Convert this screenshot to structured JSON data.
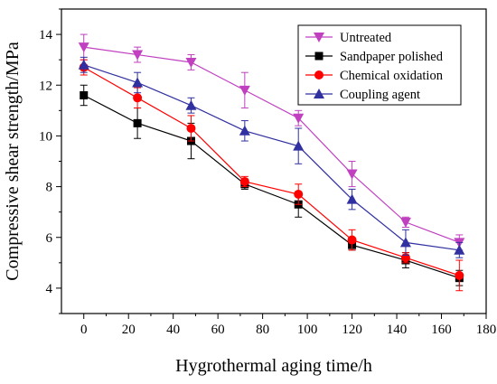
{
  "chart_data": {
    "type": "line",
    "xlabel": "Hygrothermal aging time/h",
    "ylabel": "Compressive shear strength/MPa",
    "xlim": [
      -10,
      180
    ],
    "ylim": [
      3.0,
      15.0
    ],
    "xticks": [
      0,
      20,
      40,
      60,
      80,
      100,
      120,
      140,
      160,
      180
    ],
    "yticks": [
      4,
      6,
      8,
      10,
      12,
      14
    ],
    "grid": false,
    "legend_position": "top-right",
    "x": [
      0,
      24,
      48,
      72,
      96,
      120,
      144,
      168
    ],
    "series": [
      {
        "name": "Untreated",
        "color": "#c040c0",
        "marker": "triangle-down",
        "values": [
          13.5,
          13.2,
          12.9,
          11.8,
          10.7,
          8.5,
          6.6,
          5.8
        ],
        "errors": [
          0.5,
          0.3,
          0.3,
          0.7,
          0.3,
          0.5,
          0.2,
          0.3
        ]
      },
      {
        "name": "Sandpaper polished",
        "color": "#000000",
        "marker": "square",
        "values": [
          11.6,
          10.5,
          9.8,
          8.1,
          7.3,
          5.7,
          5.1,
          4.4
        ],
        "errors": [
          0.4,
          0.6,
          0.7,
          0.2,
          0.5,
          0.2,
          0.3,
          0.3
        ]
      },
      {
        "name": "Chemical oxidation",
        "color": "#ff0000",
        "marker": "circle",
        "values": [
          12.7,
          11.5,
          10.3,
          8.2,
          7.7,
          5.9,
          5.2,
          4.5
        ],
        "errors": [
          0.3,
          0.4,
          0.5,
          0.2,
          0.4,
          0.4,
          0.2,
          0.6
        ]
      },
      {
        "name": "Coupling agent",
        "color": "#3030a0",
        "marker": "triangle-up",
        "values": [
          12.8,
          12.1,
          11.2,
          10.2,
          9.6,
          7.5,
          5.8,
          5.5
        ],
        "errors": [
          0.3,
          0.4,
          0.3,
          0.4,
          0.7,
          0.4,
          0.5,
          0.3
        ]
      }
    ]
  }
}
